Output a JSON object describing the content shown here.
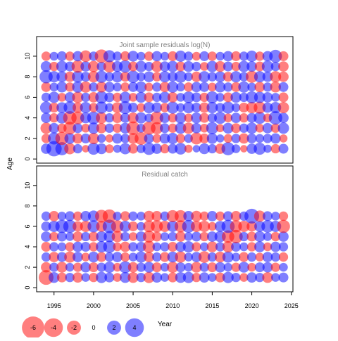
{
  "figure": {
    "ylabel": "Age",
    "xlabel": "Year"
  },
  "colors": {
    "positive": "#0000ff",
    "negative": "#ff0000",
    "fill_opacity": 0.5,
    "axis": "#000000",
    "title_text": "#808080"
  },
  "chart_data": [
    {
      "type": "bubble",
      "title": "Joint sample residuals log(N)",
      "x_range": [
        1994,
        2024
      ],
      "ages": [
        1,
        2,
        3,
        4,
        5,
        6,
        7,
        8,
        9,
        10
      ],
      "xlim": [
        1992.8,
        2025.2
      ],
      "ylim": [
        -0.4,
        11.5
      ],
      "yticks": [
        0,
        2,
        4,
        6,
        8,
        10
      ],
      "residual_sign_note": "red = negative, blue = positive; area ∝ |residual|",
      "residuals": [
        [
          0.8,
          2.2,
          1.5,
          -1.0,
          0.6,
          -0.3,
          1.2,
          0.9,
          -0.5,
          0.4,
          1.0,
          -0.7,
          0.5,
          1.3,
          0.8,
          -0.6,
          0.7,
          1.1,
          -0.4,
          0.3,
          0.9,
          0.6,
          -0.8,
          1.5,
          0.5,
          -0.3,
          0.8,
          1.2,
          0.4,
          -0.6,
          0.7
        ],
        [
          -0.6,
          1.2,
          -1.5,
          0.9,
          -0.8,
          0.7,
          -1.0,
          0.5,
          -0.4,
          0.8,
          0.6,
          -0.9,
          -1.4,
          0.7,
          -0.5,
          0.8,
          1.0,
          -0.6,
          0.5,
          -1.2,
          -0.7,
          0.9,
          0.4,
          -0.5,
          0.6,
          -0.8,
          0.7,
          0.5,
          0.6,
          0.8,
          -0.4
        ],
        [
          -1.0,
          0.8,
          -0.6,
          -1.4,
          0.7,
          -0.5,
          1.0,
          -0.8,
          0.6,
          -0.6,
          0.9,
          -1.6,
          0.5,
          -1.5,
          -1.2,
          0.7,
          -0.6,
          1.0,
          -1.0,
          0.8,
          -0.5,
          1.2,
          -0.4,
          0.9,
          -0.7,
          0.6,
          1.0,
          -0.5,
          0.8,
          -0.6,
          1.0
        ],
        [
          0.8,
          -0.6,
          1.0,
          -1.6,
          -1.4,
          0.9,
          1.4,
          -1.0,
          0.6,
          -0.8,
          0.7,
          -0.9,
          1.0,
          0.5,
          -1.4,
          0.8,
          -0.6,
          1.0,
          -0.5,
          0.9,
          -0.7,
          0.6,
          1.2,
          -0.5,
          0.8,
          -0.6,
          0.7,
          1.2,
          -0.5,
          1.6,
          0.8
        ],
        [
          1.2,
          -0.7,
          0.9,
          1.3,
          -0.8,
          1.0,
          -0.6,
          1.2,
          0.5,
          -0.9,
          1.4,
          0.7,
          -0.5,
          1.0,
          0.8,
          -0.6,
          1.2,
          0.5,
          1.0,
          0.7,
          -0.8,
          1.0,
          0.6,
          1.2,
          0.5,
          -0.7,
          -1.0,
          -1.2,
          0.8,
          1.0,
          -1.0
        ],
        [
          0.6,
          1.0,
          -0.5,
          0.8,
          -1.0,
          0.6,
          -0.8,
          1.3,
          0.7,
          -0.6,
          1.0,
          -0.5,
          0.9,
          -0.7,
          0.6,
          1.0,
          -0.8,
          0.5,
          1.1,
          0.7,
          -0.6,
          1.2,
          0.5,
          -0.7,
          0.9,
          0.6,
          1.2,
          1.0,
          0.8,
          0.5,
          -0.7
        ],
        [
          -0.7,
          0.5,
          0.9,
          -0.6,
          1.0,
          -1.0,
          0.6,
          -0.9,
          0.8,
          0.5,
          -0.6,
          0.7,
          1.0,
          -0.5,
          0.6,
          -0.8,
          1.0,
          0.5,
          -0.6,
          0.8,
          0.7,
          -0.5,
          0.9,
          0.6,
          -0.7,
          1.0,
          0.5,
          -0.8,
          0.6,
          -0.9,
          0.7
        ],
        [
          1.5,
          1.0,
          0.9,
          -0.8,
          1.1,
          0.7,
          -1.0,
          1.2,
          0.6,
          1.0,
          -0.7,
          1.3,
          0.5,
          0.9,
          -0.6,
          1.0,
          0.7,
          1.2,
          0.5,
          -0.8,
          1.0,
          0.6,
          0.9,
          -0.7,
          1.0,
          0.6,
          -1.2,
          1.0,
          0.8,
          -1.0,
          -0.8
        ],
        [
          0.9,
          -0.6,
          1.0,
          0.7,
          -1.3,
          0.8,
          -1.0,
          0.6,
          -1.2,
          0.9,
          1.3,
          -0.7,
          1.0,
          0.6,
          -1.0,
          0.8,
          1.0,
          -0.7,
          0.9,
          0.6,
          -0.5,
          1.0,
          -0.9,
          0.7,
          -0.6,
          1.0,
          0.8,
          -0.7,
          1.1,
          0.6,
          -0.8
        ],
        [
          -0.6,
          0.5,
          0.7,
          -0.6,
          0.8,
          -1.1,
          0.6,
          -1.6,
          1.2,
          0.6,
          -0.7,
          0.9,
          0.5,
          -0.6,
          0.8,
          0.5,
          -0.7,
          1.0,
          0.6,
          -0.5,
          0.7,
          -0.6,
          0.5,
          0.8,
          -0.7,
          0.6,
          1.0,
          -0.6,
          0.8,
          1.4,
          -0.7
        ]
      ]
    },
    {
      "type": "bubble",
      "title": "Residual catch",
      "x_range": [
        1994,
        2024
      ],
      "ages": [
        1,
        2,
        3,
        4,
        5,
        6,
        7
      ],
      "xlim": [
        1992.8,
        2025.2
      ],
      "ylim": [
        -0.4,
        11.5
      ],
      "yticks": [
        0,
        2,
        4,
        6,
        8,
        10
      ],
      "residuals": [
        [
          -2.0,
          0.9,
          -0.7,
          0.6,
          -0.8,
          0.5,
          -0.6,
          1.0,
          0.7,
          -0.5,
          0.9,
          -0.9,
          0.6,
          -1.0,
          0.8,
          0.5,
          -0.7,
          0.9,
          1.0,
          -0.6,
          0.8,
          0.5,
          -0.7,
          1.0,
          0.6,
          -0.5,
          0.8,
          0.6,
          -0.9,
          0.5,
          0.7
        ],
        [
          -0.8,
          0.6,
          -0.9,
          0.5,
          -0.6,
          0.8,
          -0.7,
          0.6,
          1.0,
          -0.5,
          1.2,
          -0.8,
          0.6,
          0.9,
          -0.7,
          0.5,
          -1.0,
          0.7,
          0.5,
          -0.9,
          0.6,
          -0.7,
          0.8,
          0.5,
          -0.6,
          0.9,
          -0.5,
          0.7,
          0.8,
          -0.6,
          0.5
        ],
        [
          0.6,
          -0.8,
          0.7,
          -1.0,
          0.8,
          -0.5,
          0.9,
          -0.7,
          0.6,
          0.8,
          -0.6,
          0.5,
          1.0,
          -0.8,
          0.6,
          -0.7,
          0.9,
          -1.0,
          0.5,
          0.8,
          -1.1,
          0.6,
          -0.9,
          1.0,
          0.5,
          -0.7,
          0.6,
          -0.5,
          0.8,
          0.6,
          -0.6
        ],
        [
          -0.7,
          0.6,
          0.5,
          -0.6,
          0.8,
          0.7,
          -0.6,
          1.0,
          1.3,
          -0.5,
          -0.8,
          0.6,
          0.7,
          -1.2,
          0.5,
          0.6,
          -0.7,
          0.8,
          1.0,
          -0.6,
          0.5,
          -0.9,
          0.6,
          -1.0,
          0.7,
          0.5,
          -0.6,
          0.9,
          -0.5,
          0.8,
          0.6
        ],
        [
          0.8,
          -0.6,
          0.7,
          0.5,
          -0.8,
          0.6,
          -0.7,
          0.9,
          1.0,
          -1.0,
          0.6,
          -0.5,
          0.8,
          -1.2,
          -0.7,
          0.5,
          0.6,
          -0.8,
          0.5,
          0.7,
          -0.6,
          0.8,
          1.0,
          -1.3,
          -1.6,
          0.6,
          -0.7,
          0.9,
          0.5,
          -0.6,
          0.8
        ],
        [
          0.7,
          1.0,
          1.5,
          1.5,
          -0.8,
          -1.0,
          1.2,
          -0.9,
          1.6,
          -1.3,
          1.0,
          -0.7,
          0.5,
          -1.1,
          -1.2,
          -1.0,
          1.0,
          -1.2,
          1.4,
          -1.0,
          -1.0,
          -0.5,
          0.9,
          1.5,
          -1.2,
          -1.0,
          -0.8,
          0.9,
          1.3,
          1.0,
          -1.5
        ],
        [
          0.6,
          -0.8,
          0.5,
          0.7,
          -0.6,
          0.8,
          1.0,
          -1.4,
          -1.6,
          0.5,
          -0.7,
          0.6,
          0.5,
          -0.9,
          -0.8,
          0.6,
          -1.2,
          -1.2,
          0.8,
          -0.9,
          -0.6,
          0.8,
          -0.6,
          0.7,
          -0.8,
          0.6,
          2.0,
          -1.0,
          0.7,
          0.5,
          -0.6
        ]
      ]
    }
  ],
  "xaxis": {
    "ticks": [
      1995,
      2000,
      2005,
      2010,
      2015,
      2020,
      2025
    ]
  },
  "legend": {
    "values": [
      -6,
      -4,
      -2,
      0,
      2,
      4
    ],
    "labels": [
      "-6",
      "-4",
      "-2",
      "0",
      "2",
      "4"
    ]
  }
}
